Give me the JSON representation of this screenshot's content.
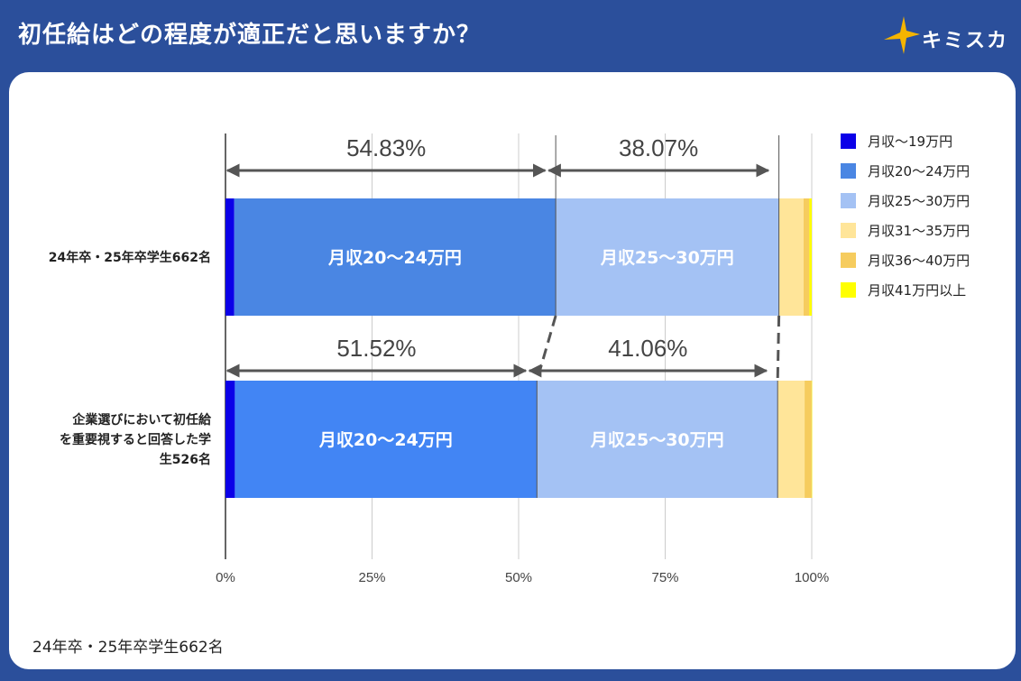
{
  "header": {
    "title": "初任給はどの程度が適正だと思いますか？",
    "logo_text": "キミスカ"
  },
  "footnote": "24年卒・25年卒学生662名",
  "colors": {
    "background": "#2b4f9b",
    "card": "#ffffff"
  },
  "chart_data": {
    "type": "bar",
    "orientation": "horizontal",
    "stacked": true,
    "categories": [
      "24年卒・25年卒学生662名",
      "企業選びにおいて初任給を重要視すると回答した学生526名"
    ],
    "category_lines": [
      [
        "24年卒・25年卒学生662名"
      ],
      [
        "企業選びにおいて初任給",
        "を重要視すると回答した学",
        "生526名"
      ]
    ],
    "series": [
      {
        "name": "月収〜19万円",
        "color": "#0b00e8",
        "values": [
          1.5,
          1.6
        ]
      },
      {
        "name": "月収20〜24万円",
        "color": "#4a86e3",
        "colors": [
          "#4a86e3",
          "#4285f4"
        ],
        "values": [
          54.83,
          51.52
        ],
        "bar_label": "月収20〜24万円"
      },
      {
        "name": "月収25〜30万円",
        "color": "#a4c2f4",
        "values": [
          38.07,
          41.06
        ],
        "bar_label": "月収25〜30万円"
      },
      {
        "name": "月収31〜35万円",
        "color": "#ffe599",
        "values": [
          4.2,
          4.6
        ]
      },
      {
        "name": "月収36〜40万円",
        "color": "#f6cc5e",
        "values": [
          1.0,
          1.2
        ]
      },
      {
        "name": "月収41万円以上",
        "color": "#ffff00",
        "values": [
          0.4,
          0.02
        ]
      }
    ],
    "annotations": [
      {
        "row": 0,
        "from": 0,
        "to": 54.83,
        "label": "54.83%"
      },
      {
        "row": 0,
        "from": 54.83,
        "to": 92.9,
        "label": "38.07%"
      },
      {
        "row": 1,
        "from": 0,
        "to": 51.52,
        "label": "51.52%"
      },
      {
        "row": 1,
        "from": 51.52,
        "to": 92.58,
        "label": "41.06%"
      }
    ],
    "xlim": [
      0,
      100
    ],
    "xticks": [
      0,
      25,
      50,
      75,
      100
    ],
    "xtick_labels": [
      "0%",
      "25%",
      "50%",
      "75%",
      "100%"
    ],
    "grid": true,
    "legend": "right"
  }
}
